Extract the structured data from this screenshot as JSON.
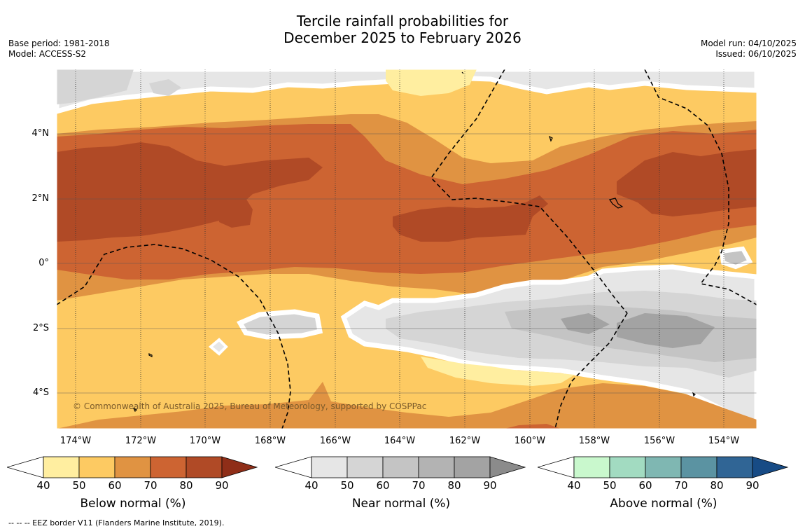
{
  "title": {
    "line1": "Tercile rainfall probabilities for",
    "line2": "December 2025 to February 2026"
  },
  "meta_left": {
    "base_period": "Base period: 1981-2018",
    "model": "Model: ACCESS-S2"
  },
  "meta_right": {
    "model_run": "Model run: 04/10/2025",
    "issued": "Issued: 06/10/2025"
  },
  "map": {
    "lat_labels": [
      "4°N",
      "2°N",
      "0°",
      "2°S",
      "4°S"
    ],
    "lon_labels": [
      "174°W",
      "172°W",
      "170°W",
      "168°W",
      "166°W",
      "164°W",
      "162°W",
      "160°W",
      "158°W",
      "156°W",
      "154°W"
    ],
    "copyright": "© Commonwealth of Australia 2025, Bureau of Meteorology, supported by COSPPac"
  },
  "colorbars": [
    {
      "title": "Below normal (%)",
      "ticks": [
        "40",
        "50",
        "60",
        "70",
        "80",
        "90"
      ],
      "colors": [
        "#ffffff",
        "#ffeea0",
        "#fdca62",
        "#e09342",
        "#cd6432",
        "#b04a26",
        "#8f2e18"
      ]
    },
    {
      "title": "Near normal (%)",
      "ticks": [
        "40",
        "50",
        "60",
        "70",
        "80",
        "90"
      ],
      "colors": [
        "#ffffff",
        "#e6e6e6",
        "#d5d5d5",
        "#c4c4c4",
        "#b3b3b3",
        "#a3a3a3",
        "#8b8b8b"
      ]
    },
    {
      "title": "Above normal (%)",
      "ticks": [
        "40",
        "50",
        "60",
        "70",
        "80",
        "90"
      ],
      "colors": [
        "#ffffff",
        "#c9f8cd",
        "#a2dbc1",
        "#7fb7b2",
        "#5b93a2",
        "#306595",
        "#174b85"
      ]
    }
  ],
  "footnote": "--  --  -- EEZ border V11 (Flanders Marine Institute, 2019)."
}
